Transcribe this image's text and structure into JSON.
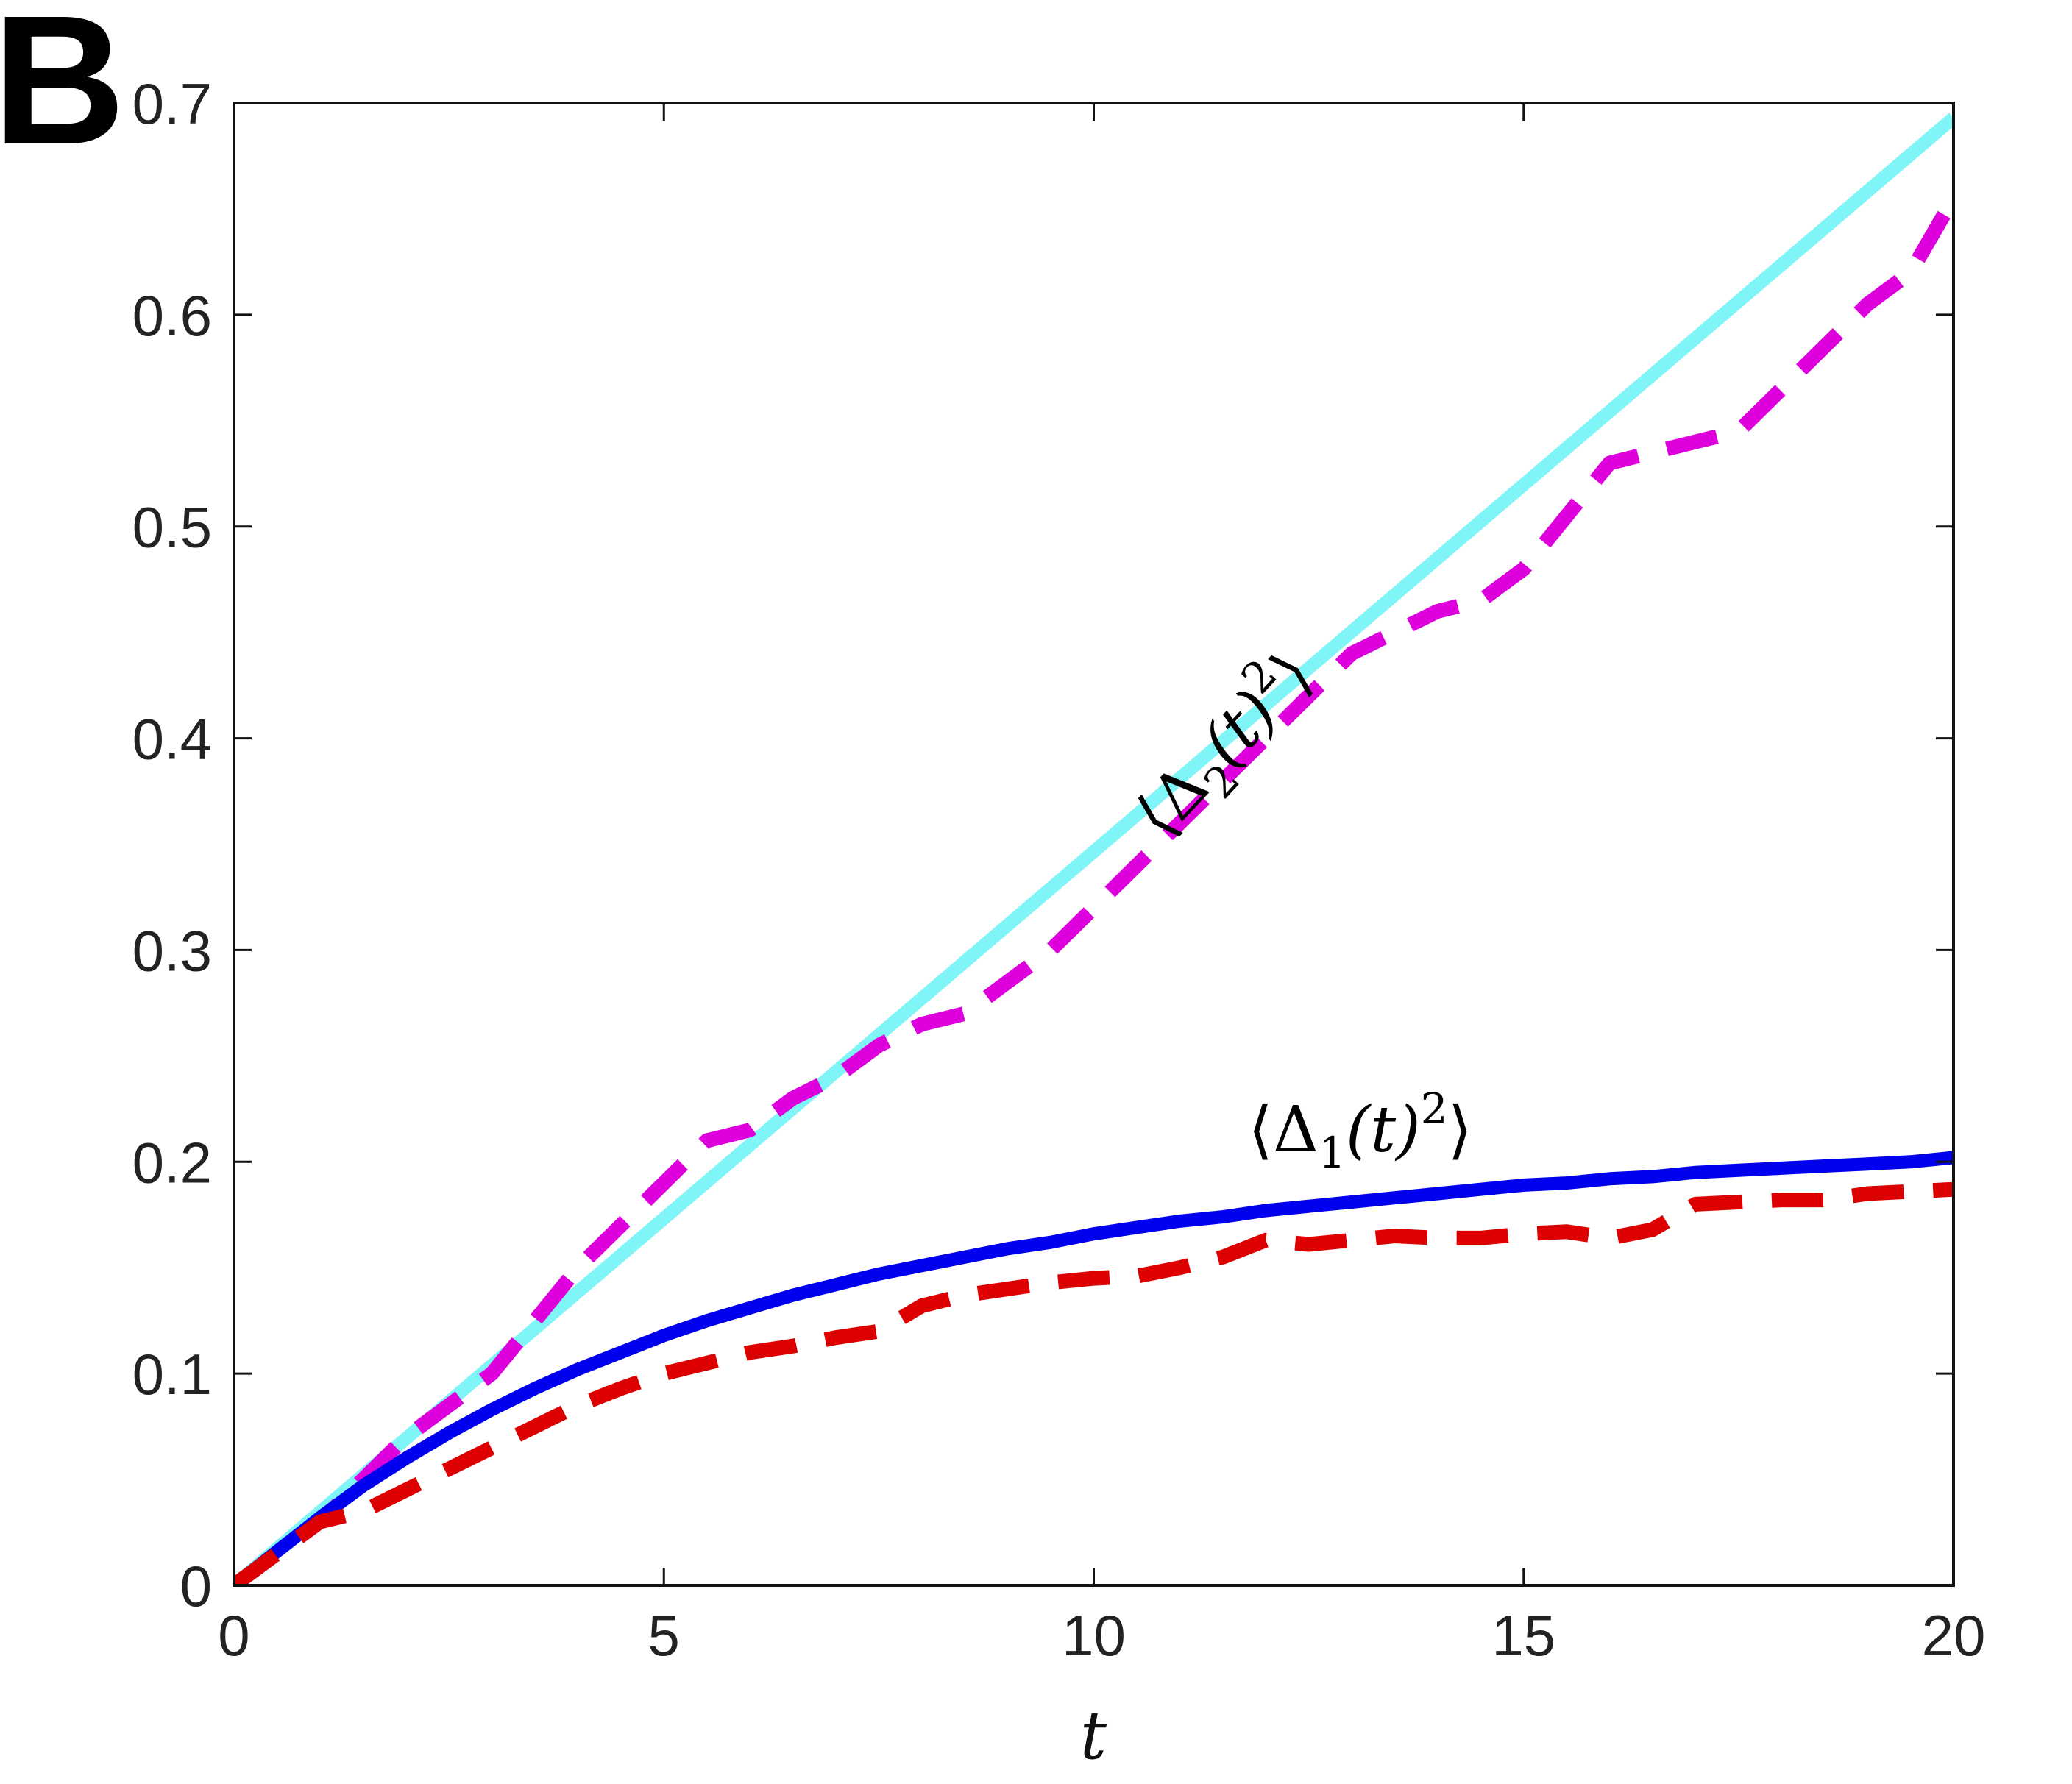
{
  "figure": {
    "panel_label": "B"
  },
  "chart_data": {
    "type": "line",
    "title": "",
    "xlabel": "t",
    "ylabel": "",
    "xlim": [
      0,
      20
    ],
    "ylim": [
      0,
      0.7
    ],
    "xticks": [
      0,
      5,
      10,
      15,
      20
    ],
    "yticks": [
      0,
      0.1,
      0.2,
      0.3,
      0.4,
      0.5,
      0.6,
      0.7
    ],
    "xtick_labels": [
      "0",
      "5",
      "10",
      "15",
      "20"
    ],
    "ytick_labels": [
      "0",
      "0.1",
      "0.2",
      "0.3",
      "0.4",
      "0.5",
      "0.6",
      "0.7"
    ],
    "grid": false,
    "legend": "none",
    "annotations": [
      {
        "target": "delta2",
        "base": "⟨Δ",
        "sub": "2",
        "mid": "(t)",
        "sup": "2",
        "close": "⟩",
        "x": 11.7,
        "y": 0.39,
        "rotation_deg": -47
      },
      {
        "target": "delta1",
        "base": "⟨Δ",
        "sub": "1",
        "mid": "(t)",
        "sup": "2",
        "close": "⟩",
        "x": 13.1,
        "y": 0.205,
        "rotation_deg": 0
      }
    ],
    "series": [
      {
        "id": "delta2_theory",
        "style": "solid",
        "color": "#7ff5f7",
        "x": [
          0,
          20
        ],
        "y": [
          0,
          0.693
        ]
      },
      {
        "id": "delta2_sim",
        "style": "dashed",
        "color": "#dd00dd",
        "x": [
          0,
          0.5,
          1,
          1.5,
          2,
          2.5,
          3,
          3.5,
          4,
          4.5,
          5,
          5.5,
          6,
          6.5,
          7,
          7.5,
          8,
          8.5,
          9,
          9.5,
          10,
          10.5,
          11,
          11.5,
          12,
          12.5,
          13,
          13.5,
          14,
          14.5,
          15,
          15.5,
          16,
          16.5,
          17,
          17.5,
          18,
          18.5,
          19,
          19.5,
          20
        ],
        "y": [
          0,
          0.015,
          0.03,
          0.05,
          0.07,
          0.085,
          0.1,
          0.125,
          0.15,
          0.17,
          0.19,
          0.21,
          0.215,
          0.23,
          0.24,
          0.255,
          0.265,
          0.27,
          0.285,
          0.3,
          0.32,
          0.34,
          0.36,
          0.38,
          0.4,
          0.42,
          0.44,
          0.45,
          0.46,
          0.465,
          0.48,
          0.505,
          0.53,
          0.535,
          0.54,
          0.545,
          0.565,
          0.585,
          0.605,
          0.62,
          0.655
        ]
      },
      {
        "id": "delta1_theory",
        "style": "solid",
        "color": "#0000ee",
        "x": [
          0,
          0.5,
          1,
          1.5,
          2,
          2.5,
          3,
          3.5,
          4,
          4.5,
          5,
          5.5,
          6,
          6.5,
          7,
          7.5,
          8,
          8.5,
          9,
          9.5,
          10,
          10.5,
          11,
          11.5,
          12,
          12.5,
          13,
          13.5,
          14,
          14.5,
          15,
          15.5,
          16,
          16.5,
          17,
          17.5,
          18,
          18.5,
          19,
          19.5,
          20
        ],
        "y": [
          0,
          0.016,
          0.032,
          0.047,
          0.06,
          0.072,
          0.083,
          0.093,
          0.102,
          0.11,
          0.118,
          0.125,
          0.131,
          0.137,
          0.142,
          0.147,
          0.151,
          0.155,
          0.159,
          0.162,
          0.166,
          0.169,
          0.172,
          0.174,
          0.177,
          0.179,
          0.181,
          0.183,
          0.185,
          0.187,
          0.189,
          0.19,
          0.192,
          0.193,
          0.195,
          0.196,
          0.197,
          0.198,
          0.199,
          0.2,
          0.202
        ]
      },
      {
        "id": "delta1_sim",
        "style": "dashed",
        "color": "#dd0000",
        "x": [
          0,
          0.5,
          1,
          1.5,
          2,
          2.5,
          3,
          3.5,
          4,
          4.5,
          5,
          5.5,
          6,
          6.5,
          7,
          7.5,
          8,
          8.5,
          9,
          9.5,
          10,
          10.5,
          11,
          11.5,
          12,
          12.5,
          13,
          13.5,
          14,
          14.5,
          15,
          15.5,
          16,
          16.5,
          17,
          17.5,
          18,
          18.5,
          19,
          19.5,
          20
        ],
        "y": [
          0,
          0.015,
          0.03,
          0.035,
          0.045,
          0.055,
          0.065,
          0.075,
          0.085,
          0.093,
          0.1,
          0.105,
          0.11,
          0.113,
          0.117,
          0.12,
          0.132,
          0.137,
          0.14,
          0.143,
          0.145,
          0.146,
          0.15,
          0.155,
          0.163,
          0.161,
          0.163,
          0.165,
          0.164,
          0.164,
          0.166,
          0.167,
          0.164,
          0.168,
          0.18,
          0.181,
          0.182,
          0.182,
          0.185,
          0.186,
          0.187
        ]
      }
    ]
  }
}
